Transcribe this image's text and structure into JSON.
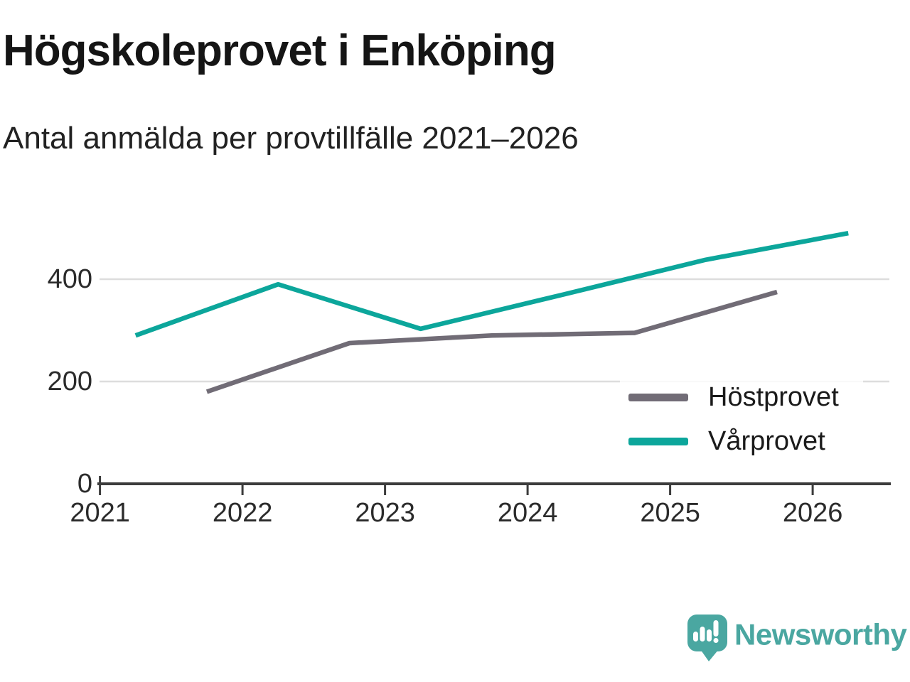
{
  "page": {
    "background": "#FFFFFF"
  },
  "header": {
    "title": "Högskoleprovet i Enköping",
    "subtitle": "Antal anmälda per provtillfälle 2021–2026"
  },
  "chart_data": {
    "type": "line",
    "title": "Högskoleprovet i Enköping",
    "subtitle": "Antal anmälda per provtillfälle 2021–2026",
    "xlabel": "",
    "ylabel": "",
    "x_ticks": [
      2021,
      2022,
      2023,
      2024,
      2025,
      2026
    ],
    "y_ticks": [
      0,
      200,
      400
    ],
    "x_domain": [
      2021,
      2026.57
    ],
    "ylim": [
      0,
      540
    ],
    "grid": "horizontal",
    "legend_position": "right-middle",
    "series": [
      {
        "name": "Höstprovet",
        "color": "#716C76",
        "x": [
          2021.75,
          2022.75,
          2023.75,
          2024.75,
          2025.75
        ],
        "values": [
          180,
          275,
          290,
          295,
          375
        ]
      },
      {
        "name": "Vårprovet",
        "color": "#0CA69B",
        "x": [
          2021.25,
          2022.25,
          2023.25,
          2024.25,
          2025.25,
          2026.25
        ],
        "values": [
          290,
          390,
          303,
          370,
          438,
          490
        ]
      }
    ],
    "colors": {
      "axis": "#3C3C3C",
      "grid": "#DDDDDD",
      "tick_label": "#2B2B2B"
    }
  },
  "branding": {
    "wordmark": "Newsworthy",
    "logo_icon": "speech-bubble-bar-chart-icon",
    "color": "#4AA7A1"
  }
}
